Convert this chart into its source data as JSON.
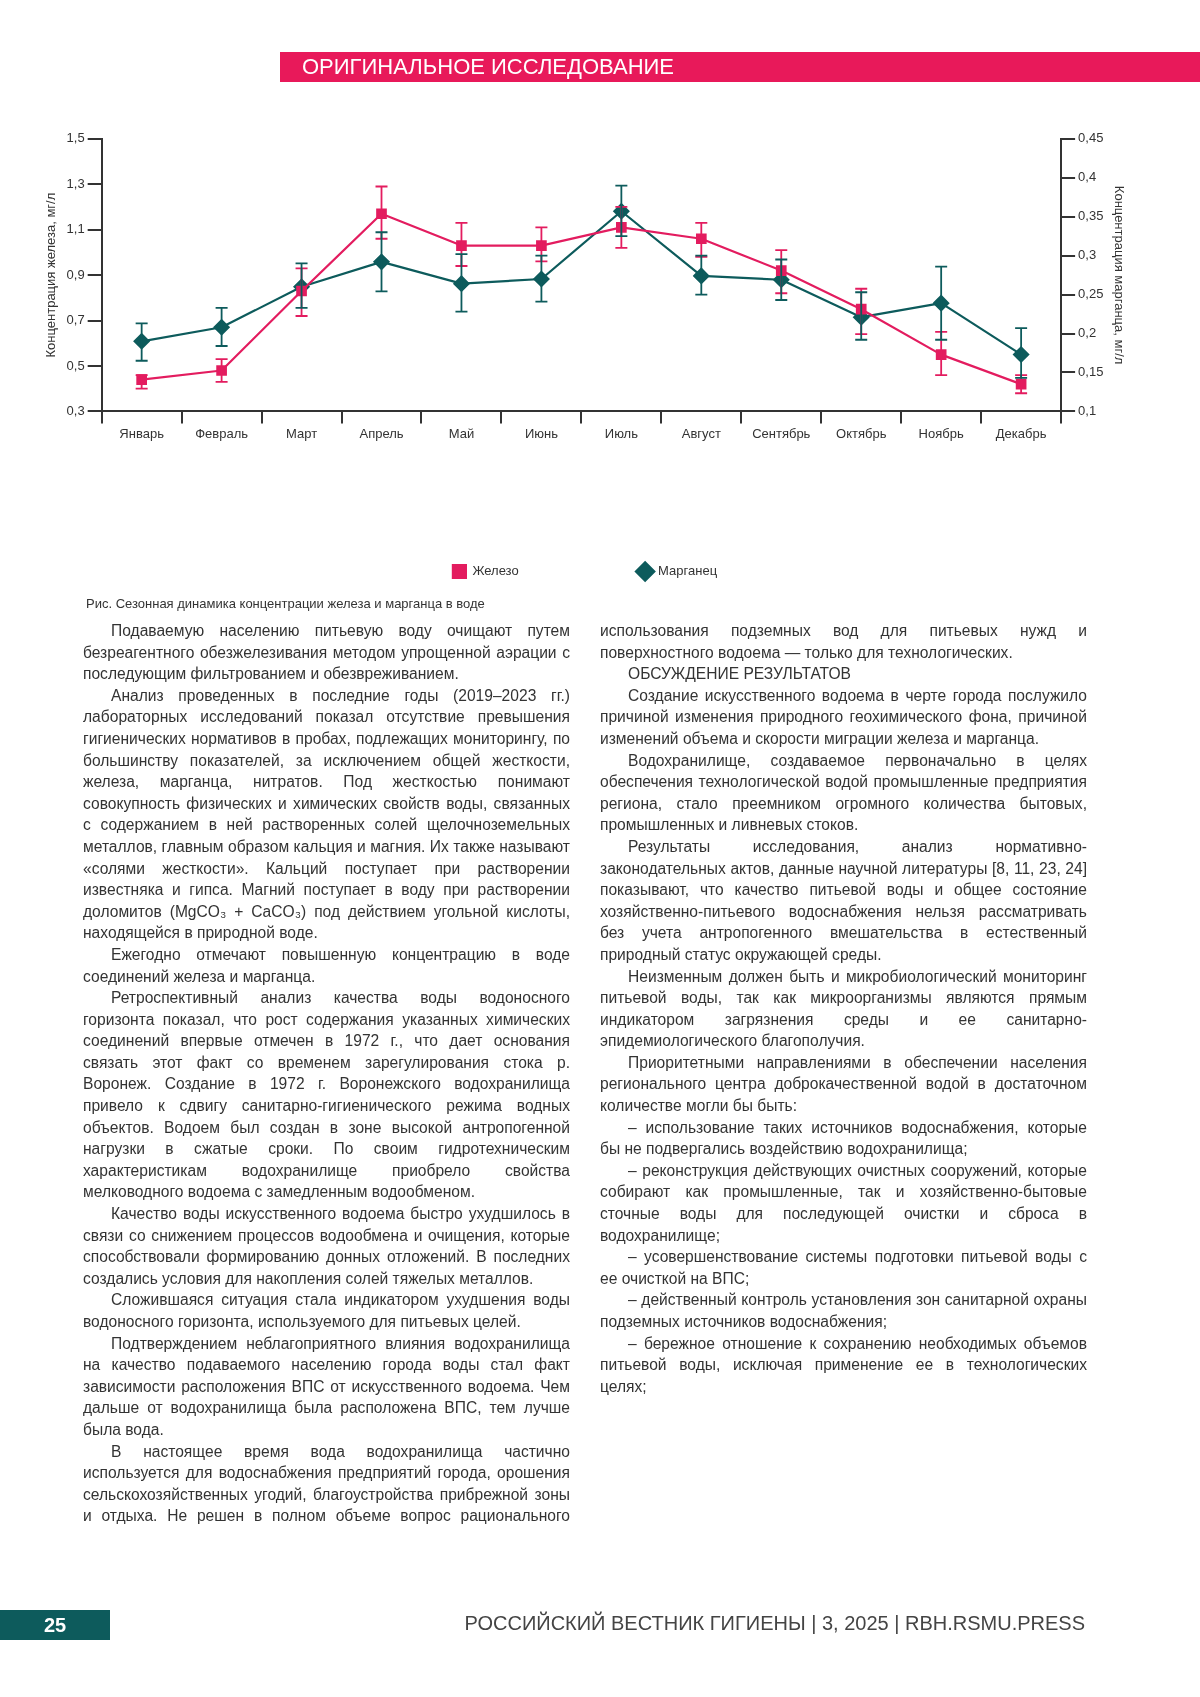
{
  "chart_data": {
    "type": "line",
    "title": "Рис. Сезонная динамика концентрации железа и марганца в воде",
    "ylabel": "Концентрация железа, мг/л",
    "y2label": "Концентрация марганца, мг/л",
    "categories": [
      "Январь",
      "Февраль",
      "Март",
      "Апрель",
      "Май",
      "Июнь",
      "Июль",
      "Август",
      "Сентябрь",
      "Октябрь",
      "Ноябрь",
      "Декабрь"
    ],
    "series": [
      {
        "name": "Железо",
        "color": "#e31c5f",
        "marker": "square",
        "values": [
          0.44,
          0.48,
          0.83,
          1.17,
          1.03,
          1.03,
          1.11,
          1.06,
          0.92,
          0.75,
          0.55,
          0.42
        ],
        "errors": [
          [
            0.4,
            0.46
          ],
          [
            0.43,
            0.53
          ],
          [
            0.72,
            0.93
          ],
          [
            1.06,
            1.29
          ],
          [
            0.94,
            1.13
          ],
          [
            0.96,
            1.11
          ],
          [
            1.02,
            1.2
          ],
          [
            0.98,
            1.13
          ],
          [
            0.82,
            1.01
          ],
          [
            0.64,
            0.84
          ],
          [
            0.46,
            0.65
          ],
          [
            0.38,
            0.46
          ]
        ]
      },
      {
        "name": "Марганец",
        "color": "#0d5b5c",
        "marker": "diamond",
        "axis": "y2",
        "values": [
          0.19,
          0.208,
          0.26,
          0.292,
          0.264,
          0.27,
          0.357,
          0.274,
          0.269,
          0.221,
          0.239,
          0.173
        ],
        "errors": [
          [
            0.165,
            0.213
          ],
          [
            0.184,
            0.233
          ],
          [
            0.233,
            0.29
          ],
          [
            0.254,
            0.33
          ],
          [
            0.228,
            0.302
          ],
          [
            0.241,
            0.3
          ],
          [
            0.325,
            0.39
          ],
          [
            0.25,
            0.3
          ],
          [
            0.243,
            0.295
          ],
          [
            0.192,
            0.253
          ],
          [
            0.192,
            0.286
          ],
          [
            0.143,
            0.207
          ]
        ]
      }
    ],
    "ylim": [
      0.3,
      1.5
    ],
    "yticks": [
      {
        "value": 0.3,
        "label": "0,3"
      },
      {
        "value": 0.5,
        "label": "0,5"
      },
      {
        "value": 0.7,
        "label": "0,7"
      },
      {
        "value": 0.9,
        "label": "0,9"
      },
      {
        "value": 1.1,
        "label": "1,1"
      },
      {
        "value": 1.3,
        "label": "1,3"
      },
      {
        "value": 1.5,
        "label": "1,5"
      }
    ],
    "y2lim": [
      0.1,
      0.45
    ],
    "y2ticks": [
      {
        "value": 0.1,
        "label": "0,1"
      },
      {
        "value": 0.15,
        "label": "0,15"
      },
      {
        "value": 0.2,
        "label": "0,2"
      },
      {
        "value": 0.25,
        "label": "0,25"
      },
      {
        "value": 0.3,
        "label": "0,3"
      },
      {
        "value": 0.35,
        "label": "0,35"
      },
      {
        "value": 0.4,
        "label": "0,4"
      },
      {
        "value": 0.45,
        "label": "0,45"
      }
    ],
    "legend": "bottom",
    "annotations": [
      "ОРИГИНАЛЬНОЕ ИССЛЕДОВАНИЕ",
      "Подаваемую населению питьевую воду очищают путем безреагентного обезжелезивания методом упрощенной аэрации с последующим фильтрованием и обезвреживанием.",
      "Анализ проведенных в последние годы (2019–2023 гг.) лабораторных исследований показал отсутствие превышения гигиенических нормативов в пробах, подлежащих мониторингу, по большинству показателей, за исключением общей жесткости, железа, марганца, нитратов. Под жесткостью понимают совокупность физических и химических свойств воды, связанных с содержанием в ней растворенных солей щелочноземельных металлов, главным образом кальция и магния. Их также называют «солями жесткости». Кальций поступает при растворении известняка и гипса. Магний поступает в воду при растворении доломитов (MgCO₃ + CaCO₃) под действием угольной кислоты, находящейся в природной воде.",
      "Ежегодно отмечают повышенную концентрацию в воде соединений железа и марганца.",
      "Ретроспективный анализ качества воды водоносного горизонта показал, что рост содержания указанных химических соединений впервые отмечен в 1972 г., что дает основания связать этот факт со временем зарегулирования стока р. Воронеж. Создание в 1972 г. Воронежского водохранилища привело к сдвигу санитарно-гигиенического режима водных объектов. Водоем был создан в зоне высокой антропогенной нагрузки в сжатые сроки. По своим гидротехническим характеристикам водохранилище приобрело свойства мелководного водоема с замедленным водообменом.",
      "Качество воды искусственного водоема быстро ухудшилось в связи со снижением процессов водообмена и очищения, которые способствовали формированию донных отложений. В последних создались условия для накопления солей тяжелых металлов.",
      "Сложившаяся ситуация стала индикатором ухудшения воды водоносного горизонта, используемого для питьевых целей.",
      "Подтверждением неблагоприятного влияния водохранилища на качество подаваемого населению города воды стал факт зависимости расположения ВПС от искусственного водоема. Чем дальше от водохранилища была расположена ВПС, тем лучше была вода.",
      "В настоящее время вода водохранилища частично используется для водоснабжения предприятий города, орошения сельскохозяйственных угодий, благоустройства прибрежной зоны и отдыха. Не решен в полном объеме вопрос рационального использования подземных вод для питьевых нужд и поверхностного водоема — только для технологических.",
      "ОБСУЖДЕНИЕ РЕЗУЛЬТАТОВ",
      "Создание искусственного водоема в черте города послужило причиной изменения природного геохимического фона, причиной изменений объема и скорости миграции железа и марганца.",
      "Водохранилище, создаваемое первоначально в целях обеспечения технологической водой промышленные предприятия региона, стало преемником огромного количества бытовых, промышленных и ливневых стоков.",
      "Результаты исследования, анализ нормативно-законодательных актов, данные научной литературы [8, 11, 23, 24] показывают, что качество питьевой воды и общее состояние хозяйственно-питьевого водоснабжения нельзя рассматривать без учета антропогенного вмешательства в естественный природный статус окружающей среды.",
      "Неизменным должен быть и микробиологический мониторинг питьевой воды, так как микроорганизмы являются прямым индикатором загрязнения среды и ее санитарно-эпидемиологического благополучия.",
      "Приоритетными направлениями в обеспечении населения регионального центра доброкачественной водой в достаточном количестве могли бы быть:",
      "– использование таких источников водоснабжения, которые бы не подвергались воздействию водохранилища;",
      "– реконструкция действующих очистных сооружений, которые собирают как промышленные, так и хозяйственно-бытовые сточные воды для последующей очистки и сброса в водохранилище;",
      "– усовершенствование системы подготовки питьевой воды с ее очисткой на ВПС;",
      "– действенный контроль установления зон санитарной охраны подземных источников водоснабжения;",
      "– бережное отношение к сохранению необходимых объемов питьевой воды, исключая применение ее в технологических целях;",
      "25",
      "РОССИЙСКИЙ ВЕСТНИК ГИГИЕНЫ | 3, 2025 | RBH.RSMU.PRESS"
    ]
  }
}
